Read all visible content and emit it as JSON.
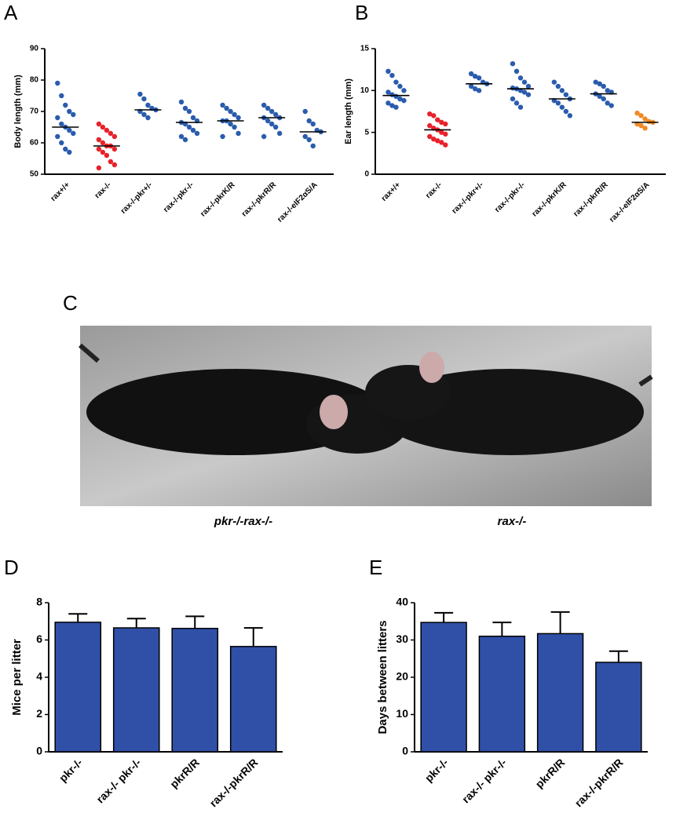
{
  "panel_labels": [
    "A",
    "B",
    "C",
    "D",
    "E"
  ],
  "photo": {
    "labels": [
      "pkr-/-rax-/-",
      "rax-/-"
    ]
  },
  "chart_data": [
    {
      "type": "dot",
      "ylabel": "Body length (mm)",
      "ylim": [
        50,
        90
      ],
      "yticks": [
        50,
        60,
        70,
        80,
        90
      ],
      "categories": [
        "rax+/+",
        "rax-/-",
        "rax-/-pkr+/-",
        "rax-/-pkr-/-",
        "rax-/-pkrK/R",
        "rax-/-pkrR/R",
        "rax-/-eIF2αS/A"
      ],
      "colors": [
        "#2a5cad",
        "#e8222b",
        "#2a5cad",
        "#2a5cad",
        "#2a5cad",
        "#2a5cad",
        "#2a5cad"
      ],
      "points": [
        [
          79,
          75,
          72,
          70,
          69,
          68,
          66,
          65,
          64,
          63,
          62,
          60,
          58,
          57
        ],
        [
          66,
          65,
          64,
          63,
          62,
          61,
          60,
          59,
          59,
          58,
          58,
          57,
          56,
          54,
          53,
          52
        ],
        [
          75.5,
          74,
          72,
          71,
          70.5,
          70,
          69,
          68
        ],
        [
          73,
          71,
          70,
          68,
          67,
          66.5,
          66,
          65,
          64,
          63,
          62,
          61
        ],
        [
          72,
          71,
          70,
          69,
          68,
          67,
          67,
          66,
          65,
          63,
          62
        ],
        [
          72,
          71,
          70,
          69,
          68,
          68,
          67,
          66,
          65,
          63,
          62
        ],
        [
          70,
          67,
          66,
          64,
          63.5,
          62,
          61,
          59
        ]
      ],
      "medians": [
        65,
        59,
        70.5,
        66.5,
        67,
        68,
        63.5
      ]
    },
    {
      "type": "dot",
      "ylabel": "Ear length (mm)",
      "ylim": [
        0,
        15
      ],
      "yticks": [
        0,
        5,
        10,
        15
      ],
      "categories": [
        "rax+/+",
        "rax-/-",
        "rax-/-pkr+/-",
        "rax-/-pkr-/-",
        "rax-/-pkrK/R",
        "rax-/-pkrR/R",
        "rax-/-eIF2αS/A"
      ],
      "colors": [
        "#2a5cad",
        "#e8222b",
        "#2a5cad",
        "#2a5cad",
        "#2a5cad",
        "#2a5cad",
        "#f08a24"
      ],
      "points": [
        [
          12.3,
          11.8,
          11,
          10.5,
          10,
          9.8,
          9.5,
          9.3,
          9,
          8.8,
          8.5,
          8.2,
          8
        ],
        [
          7.2,
          7,
          6.5,
          6.2,
          6,
          5.8,
          5.5,
          5.3,
          5,
          4.8,
          4.5,
          4.2,
          4,
          3.8,
          3.5
        ],
        [
          12,
          11.7,
          11.5,
          11,
          10.8,
          10.5,
          10.2,
          10
        ],
        [
          13.2,
          12.3,
          11.5,
          11,
          10.5,
          10.3,
          10.2,
          10,
          9.8,
          9.5,
          9,
          8.5,
          8
        ],
        [
          11,
          10.5,
          10,
          9.5,
          9,
          8.8,
          8.5,
          8,
          7.5,
          7
        ],
        [
          11,
          10.8,
          10.5,
          10,
          9.8,
          9.6,
          9.3,
          9,
          8.5,
          8.2
        ],
        [
          7.3,
          7,
          6.6,
          6.3,
          6.2,
          6,
          5.8,
          5.5
        ]
      ],
      "medians": [
        9.4,
        5.3,
        10.8,
        10.2,
        9,
        9.6,
        6.2
      ]
    },
    {
      "type": "bar",
      "ylabel": "Mice per litter",
      "ylim": [
        0,
        8
      ],
      "yticks": [
        0,
        2,
        4,
        6,
        8
      ],
      "color": "#3050a8",
      "categories": [
        "pkr-/-",
        "rax-/- pkr-/-",
        "pkrR/R",
        "rax-/-pkrR/R"
      ],
      "values": [
        6.95,
        6.65,
        6.62,
        5.65
      ],
      "errors": [
        0.45,
        0.5,
        0.65,
        1.0
      ]
    },
    {
      "type": "bar",
      "ylabel": "Days between litters",
      "ylim": [
        0,
        40
      ],
      "yticks": [
        0,
        10,
        20,
        30,
        40
      ],
      "color": "#3050a8",
      "categories": [
        "pkr-/-",
        "rax-/- pkr-/-",
        "pkrR/R",
        "rax-/-pkrR/R"
      ],
      "values": [
        34.7,
        31,
        31.7,
        24
      ],
      "errors": [
        2.6,
        3.7,
        5.8,
        3
      ]
    }
  ]
}
